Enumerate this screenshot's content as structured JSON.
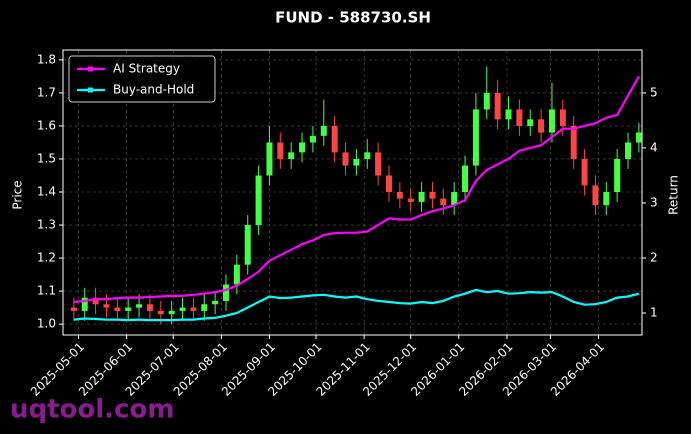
{
  "chart_data": {
    "type": "candlestick",
    "title": "FUND - 588730.SH",
    "ylabel": "Price",
    "y2label": "Return",
    "watermark": "uqtool.com",
    "up_color": "#44ff44",
    "down_color": "#ff4444",
    "grid": true,
    "legend": "upper left",
    "x": [
      "2025-04-28",
      "2025-05-05",
      "2025-05-12",
      "2025-05-19",
      "2025-05-26",
      "2025-06-02",
      "2025-06-09",
      "2025-06-16",
      "2025-06-23",
      "2025-06-30",
      "2025-07-07",
      "2025-07-14",
      "2025-07-21",
      "2025-07-28",
      "2025-08-04",
      "2025-08-11",
      "2025-08-18",
      "2025-08-25",
      "2025-09-01",
      "2025-09-08",
      "2025-09-15",
      "2025-09-22",
      "2025-09-29",
      "2025-10-06",
      "2025-10-13",
      "2025-10-20",
      "2025-10-27",
      "2025-11-03",
      "2025-11-10",
      "2025-11-17",
      "2025-11-24",
      "2025-12-01",
      "2025-12-08",
      "2025-12-15",
      "2025-12-22",
      "2025-12-29",
      "2026-01-05",
      "2026-01-12",
      "2026-01-19",
      "2026-01-26",
      "2026-02-02",
      "2026-02-09",
      "2026-02-16",
      "2026-02-23",
      "2026-03-02",
      "2026-03-09",
      "2026-03-16",
      "2026-03-23",
      "2026-03-30",
      "2026-04-06",
      "2026-04-13",
      "2026-04-20",
      "2026-04-27"
    ],
    "open": [
      1.05,
      1.04,
      1.08,
      1.06,
      1.05,
      1.04,
      1.05,
      1.06,
      1.04,
      1.03,
      1.04,
      1.05,
      1.04,
      1.06,
      1.07,
      1.12,
      1.18,
      1.3,
      1.45,
      1.55,
      1.5,
      1.52,
      1.55,
      1.57,
      1.6,
      1.52,
      1.48,
      1.5,
      1.52,
      1.45,
      1.4,
      1.38,
      1.37,
      1.4,
      1.38,
      1.36,
      1.4,
      1.48,
      1.65,
      1.7,
      1.62,
      1.65,
      1.6,
      1.62,
      1.58,
      1.65,
      1.6,
      1.5,
      1.42,
      1.36,
      1.4,
      1.5,
      1.55
    ],
    "high": [
      1.08,
      1.11,
      1.11,
      1.09,
      1.08,
      1.08,
      1.09,
      1.09,
      1.07,
      1.07,
      1.08,
      1.08,
      1.09,
      1.1,
      1.15,
      1.21,
      1.33,
      1.48,
      1.6,
      1.58,
      1.55,
      1.58,
      1.6,
      1.68,
      1.63,
      1.55,
      1.53,
      1.56,
      1.55,
      1.48,
      1.43,
      1.41,
      1.43,
      1.43,
      1.41,
      1.43,
      1.51,
      1.7,
      1.78,
      1.74,
      1.69,
      1.68,
      1.65,
      1.65,
      1.73,
      1.68,
      1.63,
      1.53,
      1.45,
      1.43,
      1.53,
      1.58,
      1.61
    ],
    "low": [
      1.01,
      1.01,
      1.03,
      1.02,
      1.01,
      1.01,
      1.02,
      1.01,
      1.0,
      1.0,
      1.01,
      1.01,
      1.01,
      1.03,
      1.04,
      1.09,
      1.15,
      1.27,
      1.42,
      1.47,
      1.47,
      1.49,
      1.52,
      1.54,
      1.49,
      1.45,
      1.45,
      1.47,
      1.42,
      1.37,
      1.35,
      1.34,
      1.34,
      1.35,
      1.33,
      1.33,
      1.37,
      1.45,
      1.62,
      1.59,
      1.59,
      1.57,
      1.57,
      1.55,
      1.55,
      1.57,
      1.47,
      1.39,
      1.33,
      1.33,
      1.37,
      1.47,
      1.52
    ],
    "close": [
      1.04,
      1.08,
      1.06,
      1.05,
      1.04,
      1.05,
      1.06,
      1.04,
      1.03,
      1.04,
      1.05,
      1.04,
      1.06,
      1.07,
      1.12,
      1.18,
      1.3,
      1.45,
      1.55,
      1.5,
      1.52,
      1.55,
      1.57,
      1.6,
      1.52,
      1.48,
      1.5,
      1.52,
      1.45,
      1.4,
      1.38,
      1.37,
      1.4,
      1.38,
      1.36,
      1.4,
      1.48,
      1.65,
      1.7,
      1.62,
      1.65,
      1.6,
      1.62,
      1.58,
      1.65,
      1.6,
      1.5,
      1.42,
      1.36,
      1.4,
      1.5,
      1.55,
      1.58
    ],
    "series": [
      {
        "name": "AI Strategy",
        "color": "#ff00ff",
        "axis": "y2",
        "values": [
          1.2,
          1.22,
          1.25,
          1.25,
          1.27,
          1.28,
          1.28,
          1.29,
          1.3,
          1.31,
          1.31,
          1.33,
          1.35,
          1.38,
          1.42,
          1.5,
          1.62,
          1.75,
          1.95,
          2.05,
          2.15,
          2.25,
          2.32,
          2.42,
          2.45,
          2.46,
          2.46,
          2.48,
          2.6,
          2.72,
          2.7,
          2.7,
          2.78,
          2.85,
          2.9,
          2.96,
          3.05,
          3.4,
          3.6,
          3.7,
          3.8,
          3.95,
          4.0,
          4.05,
          4.2,
          4.35,
          4.35,
          4.4,
          4.45,
          4.55,
          4.6,
          4.95,
          5.3
        ]
      },
      {
        "name": "Buy-and-Hold",
        "color": "#00ffff",
        "axis": "y2",
        "values": [
          0.88,
          0.9,
          0.89,
          0.88,
          0.88,
          0.87,
          0.88,
          0.87,
          0.87,
          0.87,
          0.88,
          0.88,
          0.9,
          0.91,
          0.95,
          1.0,
          1.1,
          1.2,
          1.3,
          1.27,
          1.28,
          1.3,
          1.32,
          1.33,
          1.3,
          1.28,
          1.3,
          1.25,
          1.22,
          1.2,
          1.18,
          1.17,
          1.2,
          1.18,
          1.22,
          1.3,
          1.35,
          1.42,
          1.38,
          1.4,
          1.35,
          1.36,
          1.38,
          1.37,
          1.38,
          1.3,
          1.2,
          1.15,
          1.16,
          1.2,
          1.28,
          1.3,
          1.35
        ]
      }
    ],
    "xlim": [
      "2025-04-21",
      "2026-04-29"
    ],
    "xticks": [
      "2025-05-01",
      "2025-06-01",
      "2025-07-01",
      "2025-08-01",
      "2025-09-01",
      "2025-10-01",
      "2025-11-01",
      "2025-12-01",
      "2026-01-01",
      "2026-02-01",
      "2026-03-01",
      "2026-04-01"
    ],
    "ylim": [
      0.967,
      1.83
    ],
    "yticks": [
      {
        "value": 1,
        "label": "1.0"
      },
      1.1,
      1.2,
      1.3,
      1.4,
      1.5,
      1.6,
      1.7,
      1.8
    ],
    "y2lim": [
      0.6,
      5.78
    ],
    "y2ticks": [
      1,
      2,
      3,
      4,
      5
    ]
  }
}
